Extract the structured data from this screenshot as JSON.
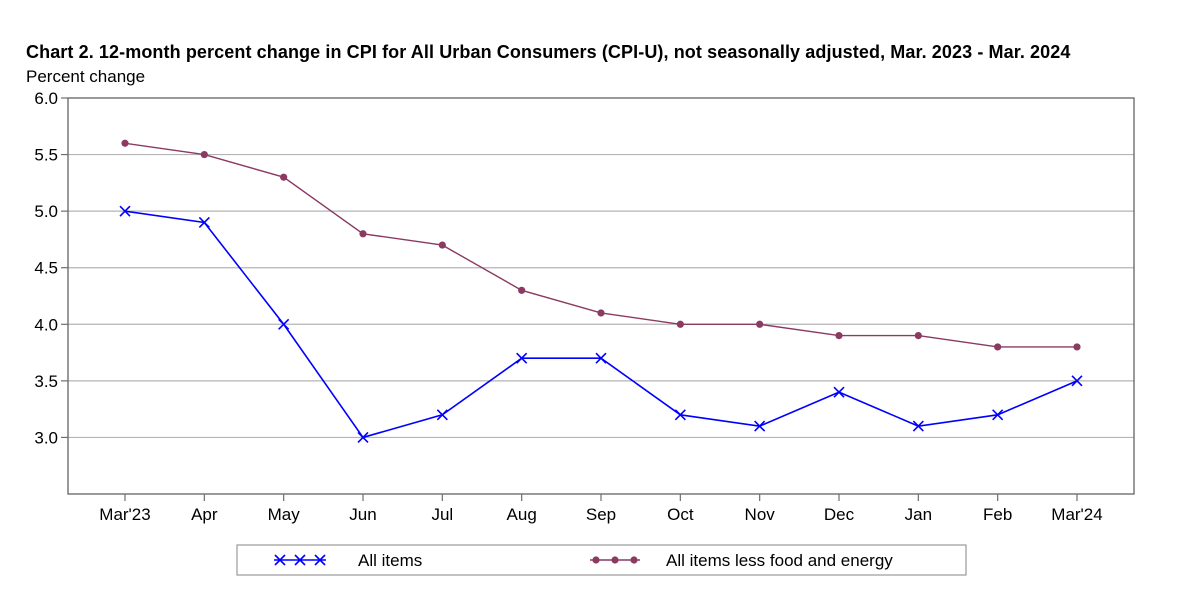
{
  "chart_data": {
    "type": "line",
    "title": "Chart 2. 12-month percent change in CPI for All Urban Consumers (CPI-U), not seasonally adjusted, Mar. 2023 - Mar. 2024",
    "ylabel": "Percent change",
    "xlabel": "",
    "ylim": [
      2.5,
      6.0
    ],
    "yticks": [
      "3.0",
      "3.5",
      "4.0",
      "4.5",
      "5.0",
      "5.5",
      "6.0"
    ],
    "ytick_values": [
      3.0,
      3.5,
      4.0,
      4.5,
      5.0,
      5.5,
      6.0
    ],
    "grid": true,
    "legend_position": "bottom",
    "categories": [
      "Mar'23",
      "Apr",
      "May",
      "Jun",
      "Jul",
      "Aug",
      "Sep",
      "Oct",
      "Nov",
      "Dec",
      "Jan",
      "Feb",
      "Mar'24"
    ],
    "series": [
      {
        "name": "All items",
        "color": "#0000ff",
        "marker": "x",
        "values": [
          5.0,
          4.9,
          4.0,
          3.0,
          3.2,
          3.7,
          3.7,
          3.2,
          3.1,
          3.4,
          3.1,
          3.2,
          3.5
        ]
      },
      {
        "name": "All items less food and energy",
        "color": "#8b3a62",
        "marker": "dot",
        "values": [
          5.6,
          5.5,
          5.3,
          4.8,
          4.7,
          4.3,
          4.1,
          4.0,
          4.0,
          3.9,
          3.9,
          3.8,
          3.8
        ]
      }
    ],
    "gridline_color": "#b4b4b4",
    "axis_color": "#6e6e6e"
  }
}
